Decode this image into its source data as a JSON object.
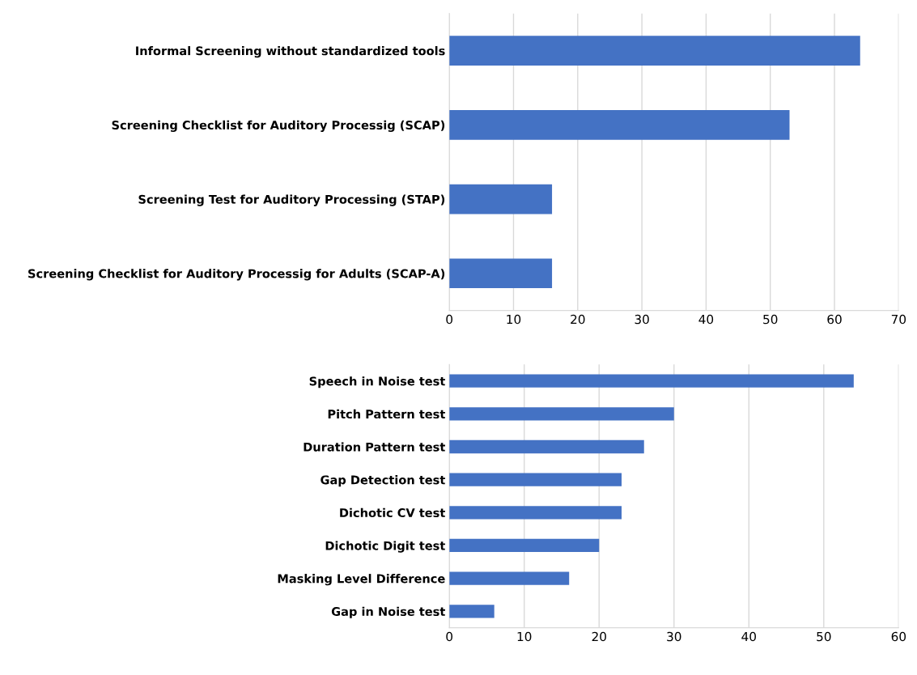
{
  "chart_data": [
    {
      "type": "bar",
      "orientation": "horizontal",
      "categories": [
        "Informal Screening without standardized tools",
        "Screening Checklist for Auditory Processig (SCAP)",
        "Screening Test for Auditory Processing (STAP)",
        "Screening Checklist for Auditory Processig for Adults (SCAP-A)"
      ],
      "values": [
        64,
        53,
        16,
        16
      ],
      "color": "#4472c4",
      "xlim": [
        0,
        70
      ],
      "xticks": [
        0,
        10,
        20,
        30,
        40,
        50,
        60,
        70
      ],
      "grid": "x"
    },
    {
      "type": "bar",
      "orientation": "horizontal",
      "categories": [
        "Speech in Noise test",
        "Pitch Pattern test",
        "Duration Pattern test",
        "Gap Detection test",
        "Dichotic CV test",
        "Dichotic Digit test",
        "Masking Level Difference",
        "Gap in Noise test"
      ],
      "values": [
        54,
        30,
        26,
        23,
        23,
        20,
        16,
        6
      ],
      "color": "#4472c4",
      "xlim": [
        0,
        60
      ],
      "xticks": [
        0,
        10,
        20,
        30,
        40,
        50,
        60
      ],
      "grid": "x"
    }
  ]
}
